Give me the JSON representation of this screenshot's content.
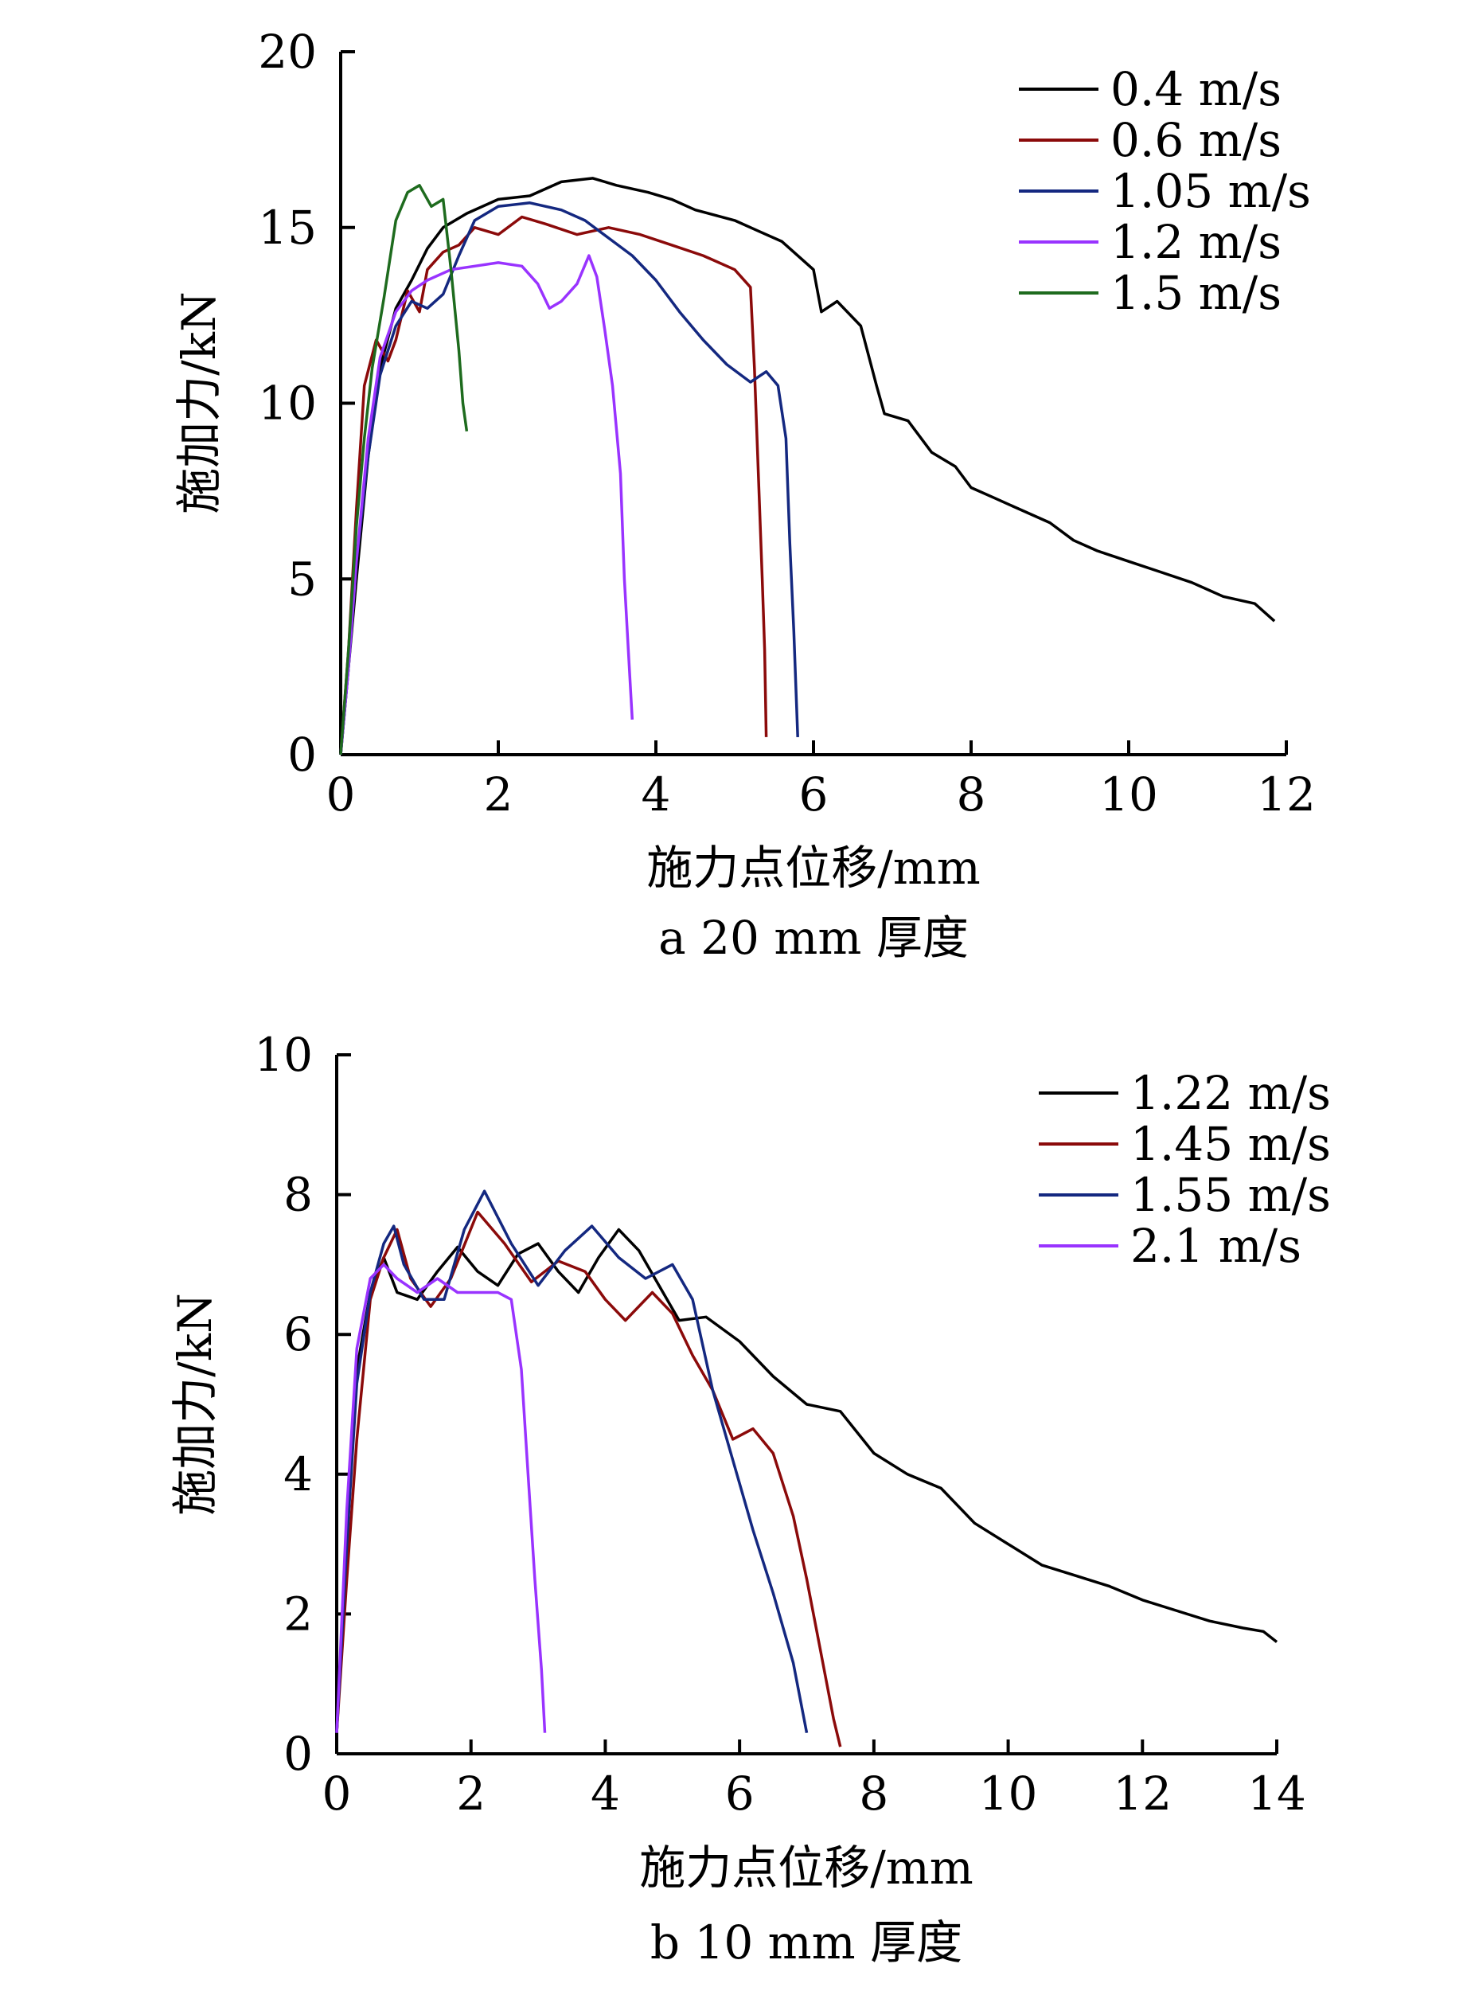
{
  "chart_data": [
    {
      "type": "line",
      "caption": "a  20 mm 厚度",
      "xlabel": "施力点位移/mm",
      "ylabel": "施加力/kN",
      "xlim": [
        0,
        12
      ],
      "ylim": [
        0,
        20
      ],
      "xticks": [
        "0",
        "2",
        "4",
        "6",
        "8",
        "10",
        "12"
      ],
      "yticks": [
        "0",
        "5",
        "10",
        "15",
        "20"
      ],
      "legend_position": "top-right",
      "series": [
        {
          "name": "0.4 m/s",
          "color": "#000000",
          "points": [
            [
              0,
              0
            ],
            [
              0.1,
              2.5
            ],
            [
              0.2,
              5
            ],
            [
              0.35,
              8.5
            ],
            [
              0.5,
              11
            ],
            [
              0.7,
              12.7
            ],
            [
              0.9,
              13.5
            ],
            [
              1.1,
              14.4
            ],
            [
              1.3,
              15
            ],
            [
              1.6,
              15.4
            ],
            [
              2,
              15.8
            ],
            [
              2.4,
              15.9
            ],
            [
              2.8,
              16.3
            ],
            [
              3.2,
              16.4
            ],
            [
              3.5,
              16.2
            ],
            [
              3.9,
              16
            ],
            [
              4.2,
              15.8
            ],
            [
              4.5,
              15.5
            ],
            [
              5,
              15.2
            ],
            [
              5.3,
              14.9
            ],
            [
              5.6,
              14.6
            ],
            [
              6,
              13.8
            ],
            [
              6.1,
              12.6
            ],
            [
              6.3,
              12.9
            ],
            [
              6.6,
              12.2
            ],
            [
              6.8,
              10.5
            ],
            [
              6.9,
              9.7
            ],
            [
              7.2,
              9.5
            ],
            [
              7.5,
              8.6
            ],
            [
              7.8,
              8.2
            ],
            [
              8,
              7.6
            ],
            [
              8.3,
              7.3
            ],
            [
              8.6,
              7
            ],
            [
              9,
              6.6
            ],
            [
              9.3,
              6.1
            ],
            [
              9.6,
              5.8
            ],
            [
              10,
              5.5
            ],
            [
              10.4,
              5.2
            ],
            [
              10.8,
              4.9
            ],
            [
              11.2,
              4.5
            ],
            [
              11.6,
              4.3
            ],
            [
              11.85,
              3.8
            ]
          ]
        },
        {
          "name": "0.6 m/s",
          "color": "#8b0a0a",
          "points": [
            [
              0,
              0
            ],
            [
              0.1,
              3
            ],
            [
              0.2,
              7
            ],
            [
              0.3,
              10.5
            ],
            [
              0.45,
              11.8
            ],
            [
              0.6,
              11.2
            ],
            [
              0.7,
              11.8
            ],
            [
              0.85,
              13.2
            ],
            [
              1.0,
              12.6
            ],
            [
              1.1,
              13.8
            ],
            [
              1.3,
              14.3
            ],
            [
              1.5,
              14.5
            ],
            [
              1.7,
              15
            ],
            [
              2,
              14.8
            ],
            [
              2.3,
              15.3
            ],
            [
              2.6,
              15.1
            ],
            [
              3,
              14.8
            ],
            [
              3.4,
              15
            ],
            [
              3.8,
              14.8
            ],
            [
              4.2,
              14.5
            ],
            [
              4.6,
              14.2
            ],
            [
              5,
              13.8
            ],
            [
              5.2,
              13.3
            ],
            [
              5.25,
              11
            ],
            [
              5.3,
              8
            ],
            [
              5.35,
              5
            ],
            [
              5.38,
              3
            ],
            [
              5.4,
              0.5
            ]
          ]
        },
        {
          "name": "1.05 m/s",
          "color": "#142880",
          "points": [
            [
              0,
              0
            ],
            [
              0.1,
              2.5
            ],
            [
              0.2,
              5.5
            ],
            [
              0.35,
              8.5
            ],
            [
              0.5,
              10.8
            ],
            [
              0.7,
              12.2
            ],
            [
              0.9,
              12.9
            ],
            [
              1.1,
              12.7
            ],
            [
              1.3,
              13.1
            ],
            [
              1.5,
              14.2
            ],
            [
              1.7,
              15.2
            ],
            [
              2,
              15.6
            ],
            [
              2.4,
              15.7
            ],
            [
              2.8,
              15.5
            ],
            [
              3.1,
              15.2
            ],
            [
              3.4,
              14.7
            ],
            [
              3.7,
              14.2
            ],
            [
              4,
              13.5
            ],
            [
              4.3,
              12.6
            ],
            [
              4.6,
              11.8
            ],
            [
              4.9,
              11.1
            ],
            [
              5.2,
              10.6
            ],
            [
              5.4,
              10.9
            ],
            [
              5.55,
              10.5
            ],
            [
              5.65,
              9
            ],
            [
              5.7,
              6
            ],
            [
              5.75,
              3.5
            ],
            [
              5.8,
              0.5
            ]
          ]
        },
        {
          "name": "1.2 m/s",
          "color": "#9933ff",
          "points": [
            [
              0,
              0
            ],
            [
              0.1,
              2.5
            ],
            [
              0.2,
              5.5
            ],
            [
              0.35,
              9
            ],
            [
              0.5,
              11.3
            ],
            [
              0.7,
              12.6
            ],
            [
              0.9,
              13.2
            ],
            [
              1.1,
              13.5
            ],
            [
              1.4,
              13.8
            ],
            [
              1.7,
              13.9
            ],
            [
              2,
              14
            ],
            [
              2.3,
              13.9
            ],
            [
              2.5,
              13.4
            ],
            [
              2.65,
              12.7
            ],
            [
              2.8,
              12.9
            ],
            [
              3.0,
              13.4
            ],
            [
              3.15,
              14.2
            ],
            [
              3.25,
              13.6
            ],
            [
              3.35,
              12.1
            ],
            [
              3.45,
              10.5
            ],
            [
              3.55,
              8
            ],
            [
              3.6,
              5
            ],
            [
              3.65,
              3
            ],
            [
              3.7,
              1
            ]
          ]
        },
        {
          "name": "1.5 m/s",
          "color": "#1e6b1e",
          "points": [
            [
              0,
              0
            ],
            [
              0.1,
              3
            ],
            [
              0.2,
              6.5
            ],
            [
              0.3,
              9
            ],
            [
              0.4,
              11
            ],
            [
              0.55,
              13
            ],
            [
              0.7,
              15.2
            ],
            [
              0.85,
              16
            ],
            [
              1.0,
              16.2
            ],
            [
              1.15,
              15.6
            ],
            [
              1.3,
              15.8
            ],
            [
              1.4,
              13.8
            ],
            [
              1.5,
              11.5
            ],
            [
              1.55,
              10
            ],
            [
              1.6,
              9.2
            ]
          ]
        }
      ]
    },
    {
      "type": "line",
      "caption": "b  10 mm 厚度",
      "xlabel": "施力点位移/mm",
      "ylabel": "施加力/kN",
      "xlim": [
        0,
        14
      ],
      "ylim": [
        0,
        10
      ],
      "xticks": [
        "0",
        "2",
        "4",
        "6",
        "8",
        "10",
        "12",
        "14"
      ],
      "yticks": [
        "0",
        "2",
        "4",
        "6",
        "8",
        "10"
      ],
      "legend_position": "top-right",
      "series": [
        {
          "name": "1.22 m/s",
          "color": "#000000",
          "points": [
            [
              0,
              0.3
            ],
            [
              0.15,
              3
            ],
            [
              0.3,
              5.5
            ],
            [
              0.5,
              6.6
            ],
            [
              0.7,
              7.1
            ],
            [
              0.9,
              6.6
            ],
            [
              1.2,
              6.5
            ],
            [
              1.5,
              6.9
            ],
            [
              1.8,
              7.25
            ],
            [
              2.1,
              6.9
            ],
            [
              2.4,
              6.7
            ],
            [
              2.7,
              7.15
            ],
            [
              3.0,
              7.3
            ],
            [
              3.3,
              6.9
            ],
            [
              3.6,
              6.6
            ],
            [
              3.9,
              7.1
            ],
            [
              4.2,
              7.5
            ],
            [
              4.5,
              7.2
            ],
            [
              4.8,
              6.7
            ],
            [
              5.1,
              6.2
            ],
            [
              5.5,
              6.25
            ],
            [
              6,
              5.9
            ],
            [
              6.5,
              5.4
            ],
            [
              7,
              5
            ],
            [
              7.5,
              4.9
            ],
            [
              8,
              4.3
            ],
            [
              8.5,
              4.0
            ],
            [
              9,
              3.8
            ],
            [
              9.5,
              3.3
            ],
            [
              10,
              3.0
            ],
            [
              10.5,
              2.7
            ],
            [
              11,
              2.55
            ],
            [
              11.5,
              2.4
            ],
            [
              12,
              2.2
            ],
            [
              12.5,
              2.05
            ],
            [
              13,
              1.9
            ],
            [
              13.5,
              1.8
            ],
            [
              13.8,
              1.75
            ],
            [
              14,
              1.6
            ]
          ]
        },
        {
          "name": "1.45 m/s",
          "color": "#8b0a0a",
          "points": [
            [
              0,
              0.3
            ],
            [
              0.15,
              2.5
            ],
            [
              0.3,
              4.5
            ],
            [
              0.5,
              6.5
            ],
            [
              0.7,
              7.1
            ],
            [
              0.9,
              7.5
            ],
            [
              1.1,
              6.8
            ],
            [
              1.4,
              6.4
            ],
            [
              1.7,
              6.8
            ],
            [
              2.1,
              7.75
            ],
            [
              2.5,
              7.3
            ],
            [
              2.9,
              6.75
            ],
            [
              3.3,
              7.05
            ],
            [
              3.7,
              6.9
            ],
            [
              4.0,
              6.5
            ],
            [
              4.3,
              6.2
            ],
            [
              4.7,
              6.6
            ],
            [
              5.0,
              6.3
            ],
            [
              5.3,
              5.7
            ],
            [
              5.6,
              5.2
            ],
            [
              5.9,
              4.5
            ],
            [
              6.2,
              4.65
            ],
            [
              6.5,
              4.3
            ],
            [
              6.8,
              3.4
            ],
            [
              7,
              2.5
            ],
            [
              7.2,
              1.5
            ],
            [
              7.4,
              0.5
            ],
            [
              7.5,
              0.1
            ]
          ]
        },
        {
          "name": "1.55 m/s",
          "color": "#142880",
          "points": [
            [
              0,
              0.3
            ],
            [
              0.15,
              3
            ],
            [
              0.3,
              5.3
            ],
            [
              0.5,
              6.6
            ],
            [
              0.7,
              7.3
            ],
            [
              0.85,
              7.55
            ],
            [
              1.0,
              7
            ],
            [
              1.3,
              6.5
            ],
            [
              1.6,
              6.5
            ],
            [
              1.9,
              7.5
            ],
            [
              2.2,
              8.05
            ],
            [
              2.6,
              7.3
            ],
            [
              3.0,
              6.7
            ],
            [
              3.4,
              7.2
            ],
            [
              3.8,
              7.55
            ],
            [
              4.2,
              7.1
            ],
            [
              4.6,
              6.8
            ],
            [
              5.0,
              7.0
            ],
            [
              5.3,
              6.5
            ],
            [
              5.6,
              5.2
            ],
            [
              5.9,
              4.2
            ],
            [
              6.2,
              3.2
            ],
            [
              6.5,
              2.3
            ],
            [
              6.8,
              1.3
            ],
            [
              7,
              0.3
            ]
          ]
        },
        {
          "name": "2.1 m/s",
          "color": "#9933ff",
          "points": [
            [
              0,
              0.3
            ],
            [
              0.15,
              3.5
            ],
            [
              0.3,
              5.8
            ],
            [
              0.5,
              6.8
            ],
            [
              0.7,
              7.0
            ],
            [
              0.9,
              6.8
            ],
            [
              1.2,
              6.6
            ],
            [
              1.5,
              6.8
            ],
            [
              1.8,
              6.6
            ],
            [
              2.1,
              6.6
            ],
            [
              2.4,
              6.6
            ],
            [
              2.6,
              6.5
            ],
            [
              2.75,
              5.5
            ],
            [
              2.85,
              4
            ],
            [
              2.95,
              2.5
            ],
            [
              3.05,
              1.2
            ],
            [
              3.1,
              0.3
            ]
          ]
        }
      ]
    }
  ]
}
